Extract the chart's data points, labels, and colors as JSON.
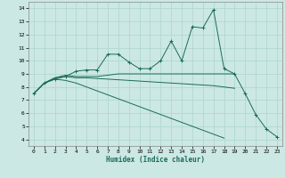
{
  "xlabel": "Humidex (Indice chaleur)",
  "background_color": "#cce8e4",
  "grid_color": "#b0d8d0",
  "line_color": "#1a6b5a",
  "xlim": [
    -0.5,
    23.5
  ],
  "ylim": [
    3.5,
    14.5
  ],
  "xticks": [
    0,
    1,
    2,
    3,
    4,
    5,
    6,
    7,
    8,
    9,
    10,
    11,
    12,
    13,
    14,
    15,
    16,
    17,
    18,
    19,
    20,
    21,
    22,
    23
  ],
  "yticks": [
    4,
    5,
    6,
    7,
    8,
    9,
    10,
    11,
    12,
    13,
    14
  ],
  "lines": [
    {
      "x": [
        0,
        1,
        2,
        3,
        4,
        5,
        6,
        7,
        8,
        9,
        10,
        11,
        12,
        13,
        14,
        15,
        16,
        17,
        18,
        19,
        20,
        21,
        22,
        23
      ],
      "y": [
        7.5,
        8.3,
        8.6,
        8.8,
        9.2,
        9.3,
        9.3,
        10.5,
        10.5,
        9.9,
        9.4,
        9.4,
        10.0,
        11.5,
        10.0,
        12.6,
        12.5,
        13.9,
        9.4,
        9.0,
        7.5,
        5.9,
        4.8,
        4.2
      ],
      "marker": "+"
    },
    {
      "x": [
        0,
        1,
        2,
        3,
        4,
        5,
        6,
        7,
        8,
        9,
        10,
        11,
        12,
        13,
        14,
        15,
        16,
        17,
        18,
        19
      ],
      "y": [
        7.5,
        8.3,
        8.7,
        8.9,
        8.8,
        8.8,
        8.8,
        8.9,
        9.0,
        9.0,
        9.0,
        9.0,
        9.0,
        9.0,
        9.0,
        9.0,
        9.0,
        9.0,
        9.0,
        9.0
      ],
      "marker": null
    },
    {
      "x": [
        0,
        1,
        2,
        3,
        4,
        5,
        6,
        7,
        8,
        9,
        10,
        11,
        12,
        13,
        14,
        15,
        16,
        17,
        18,
        19
      ],
      "y": [
        7.5,
        8.3,
        8.7,
        8.8,
        8.7,
        8.7,
        8.65,
        8.6,
        8.55,
        8.5,
        8.45,
        8.4,
        8.35,
        8.3,
        8.25,
        8.2,
        8.15,
        8.1,
        8.0,
        7.9
      ],
      "marker": null
    },
    {
      "x": [
        0,
        1,
        2,
        3,
        4,
        5,
        6,
        7,
        8,
        9,
        10,
        11,
        12,
        13,
        14,
        15,
        16,
        17,
        18
      ],
      "y": [
        7.5,
        8.3,
        8.6,
        8.5,
        8.3,
        8.0,
        7.7,
        7.4,
        7.1,
        6.8,
        6.5,
        6.2,
        5.9,
        5.6,
        5.3,
        5.0,
        4.7,
        4.4,
        4.1
      ],
      "marker": null
    }
  ]
}
